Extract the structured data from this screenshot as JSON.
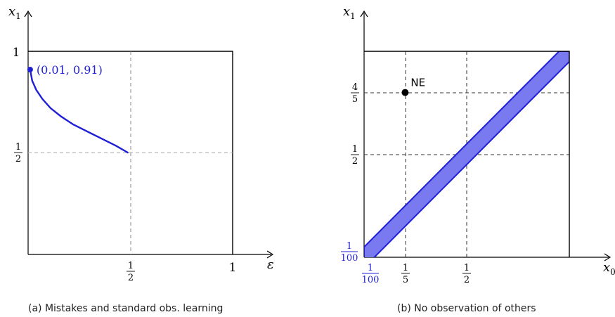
{
  "chart_data": [
    {
      "type": "line",
      "caption": "(a) Mistakes and standard obs. learning",
      "xlabel": "ε",
      "ylabel": "x",
      "ylabel_sub": "1",
      "xlim": [
        0,
        1
      ],
      "ylim": [
        0,
        1
      ],
      "x_ticks": [
        {
          "value": 0.5,
          "num": "1",
          "den": "2"
        },
        {
          "value": 1,
          "label": "1"
        }
      ],
      "y_ticks": [
        {
          "value": 0.5,
          "num": "1",
          "den": "2"
        },
        {
          "value": 1,
          "label": "1"
        }
      ],
      "dashed_guides": {
        "x": 0.5,
        "y": 0.5
      },
      "series": [
        {
          "color": "#1f1fd6",
          "x": [
            0.01,
            0.02,
            0.04,
            0.07,
            0.11,
            0.16,
            0.22,
            0.29,
            0.36,
            0.43,
            0.49
          ],
          "y": [
            0.91,
            0.855,
            0.81,
            0.765,
            0.72,
            0.68,
            0.64,
            0.605,
            0.57,
            0.535,
            0.5
          ]
        }
      ],
      "annotation": {
        "x": 0.01,
        "y": 0.91,
        "text": "(0.01, 0.91)"
      }
    },
    {
      "type": "area",
      "caption": "(b) No observation of others",
      "xlabel": "x",
      "xlabel_sub": "0",
      "ylabel": "x",
      "ylabel_sub": "1",
      "xlim": [
        0,
        1
      ],
      "ylim": [
        0,
        1
      ],
      "x_ticks": [
        {
          "value": 0.01,
          "num": "1",
          "den": "100",
          "color": "#1f1fd6"
        },
        {
          "value": 0.2,
          "num": "1",
          "den": "5"
        },
        {
          "value": 0.5,
          "num": "1",
          "den": "2"
        }
      ],
      "y_ticks": [
        {
          "value": 0.01,
          "num": "1",
          "den": "100",
          "color": "#1f1fd6"
        },
        {
          "value": 0.5,
          "num": "1",
          "den": "2"
        },
        {
          "value": 0.8,
          "num": "4",
          "den": "5"
        }
      ],
      "band": {
        "halfwidth": 0.05,
        "fill": "#7a7af0",
        "stroke": "#1f1fd6"
      },
      "point": {
        "x": 0.2,
        "y": 0.8,
        "label": "NE"
      }
    }
  ]
}
